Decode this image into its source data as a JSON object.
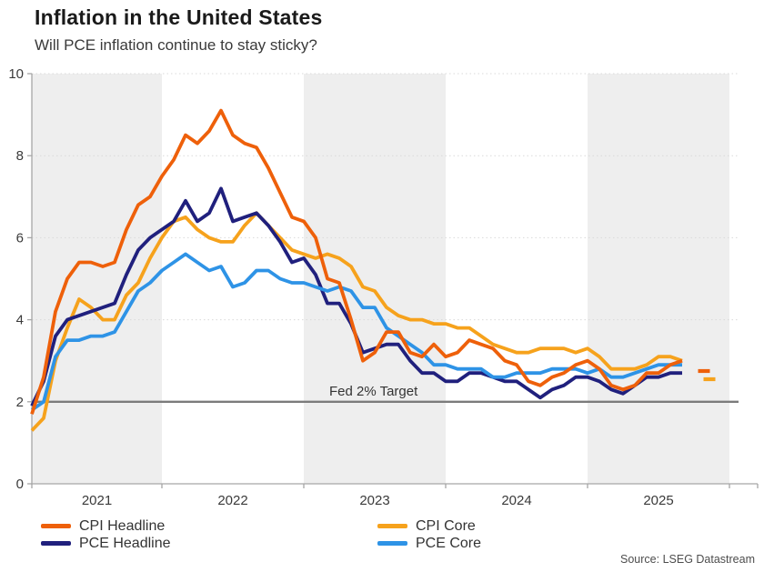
{
  "header": {
    "title": "Inflation in the United States",
    "subtitle": "Will PCE inflation continue to stay sticky?"
  },
  "source_note": "Source: LSEG Datastream",
  "chart_data": {
    "type": "line",
    "title": "Inflation in the United States",
    "subtitle": "Will PCE inflation continue to stay sticky?",
    "x_axis": {
      "unit": "month",
      "start_month": "2021-02",
      "tick_labels": [
        "2021",
        "2022",
        "2023",
        "2024",
        "2025"
      ],
      "year_band_fill": "#EEEEEE",
      "grid": "alternating-year-bands"
    },
    "y_axis": {
      "min": 0,
      "max": 10,
      "ticks": [
        0,
        2,
        4,
        6,
        8,
        10
      ],
      "grid": "dotted"
    },
    "target_line": {
      "label": "Fed 2% Target",
      "value": 2,
      "color": "#7B7B7B"
    },
    "series": [
      {
        "name": "CPI Headline",
        "color": "#EE600A",
        "values": [
          1.7,
          2.6,
          4.2,
          5.0,
          5.4,
          5.4,
          5.3,
          5.4,
          6.2,
          6.8,
          7.0,
          7.5,
          7.9,
          8.5,
          8.3,
          8.6,
          9.1,
          8.5,
          8.3,
          8.2,
          7.7,
          7.1,
          6.5,
          6.4,
          6.0,
          5.0,
          4.9,
          4.0,
          3.0,
          3.2,
          3.7,
          3.7,
          3.2,
          3.1,
          3.4,
          3.1,
          3.2,
          3.5,
          3.4,
          3.3,
          3.0,
          2.9,
          2.5,
          2.4,
          2.6,
          2.7,
          2.9,
          3.0,
          2.8,
          2.4,
          2.3,
          2.4,
          2.7,
          2.7,
          2.9,
          3.0
        ]
      },
      {
        "name": "PCE Headline",
        "color": "#20207D",
        "values": [
          1.9,
          2.5,
          3.6,
          4.0,
          4.1,
          4.2,
          4.3,
          4.4,
          5.1,
          5.7,
          6.0,
          6.2,
          6.4,
          6.9,
          6.4,
          6.6,
          7.2,
          6.4,
          6.5,
          6.6,
          6.3,
          5.9,
          5.4,
          5.5,
          5.1,
          4.4,
          4.4,
          3.9,
          3.2,
          3.3,
          3.4,
          3.4,
          3.0,
          2.7,
          2.7,
          2.5,
          2.5,
          2.7,
          2.7,
          2.6,
          2.5,
          2.5,
          2.3,
          2.1,
          2.3,
          2.4,
          2.6,
          2.6,
          2.5,
          2.3,
          2.2,
          2.4,
          2.6,
          2.6,
          2.7,
          2.7
        ]
      },
      {
        "name": "CPI Core",
        "color": "#F6A21C",
        "values": [
          1.3,
          1.6,
          3.0,
          3.8,
          4.5,
          4.3,
          4.0,
          4.0,
          4.6,
          4.9,
          5.5,
          6.0,
          6.4,
          6.5,
          6.2,
          6.0,
          5.9,
          5.9,
          6.3,
          6.6,
          6.3,
          6.0,
          5.7,
          5.6,
          5.5,
          5.6,
          5.5,
          5.3,
          4.8,
          4.7,
          4.3,
          4.1,
          4.0,
          4.0,
          3.9,
          3.9,
          3.8,
          3.8,
          3.6,
          3.4,
          3.3,
          3.2,
          3.2,
          3.3,
          3.3,
          3.3,
          3.2,
          3.3,
          3.1,
          2.8,
          2.8,
          2.8,
          2.9,
          3.1,
          3.1,
          3.0
        ]
      },
      {
        "name": "PCE Core",
        "color": "#2E93E6",
        "values": [
          1.8,
          2.0,
          3.1,
          3.5,
          3.5,
          3.6,
          3.6,
          3.7,
          4.2,
          4.7,
          4.9,
          5.2,
          5.4,
          5.6,
          5.4,
          5.2,
          5.3,
          4.8,
          4.9,
          5.2,
          5.2,
          5.0,
          4.9,
          4.9,
          4.8,
          4.7,
          4.8,
          4.7,
          4.3,
          4.3,
          3.8,
          3.6,
          3.4,
          3.2,
          2.9,
          2.9,
          2.8,
          2.8,
          2.8,
          2.6,
          2.6,
          2.7,
          2.7,
          2.7,
          2.8,
          2.8,
          2.8,
          2.7,
          2.8,
          2.6,
          2.6,
          2.7,
          2.8,
          2.9,
          2.9,
          2.9
        ]
      }
    ],
    "detached_points": [
      {
        "series": "CPI Headline",
        "month": "2025-11",
        "value": 2.75
      },
      {
        "series": "CPI Core",
        "month": "2025-11",
        "value": 2.55
      }
    ],
    "legend": {
      "position": "bottom",
      "columns": [
        [
          "CPI Headline",
          "PCE Headline"
        ],
        [
          "CPI Core",
          "PCE Core"
        ]
      ]
    }
  }
}
